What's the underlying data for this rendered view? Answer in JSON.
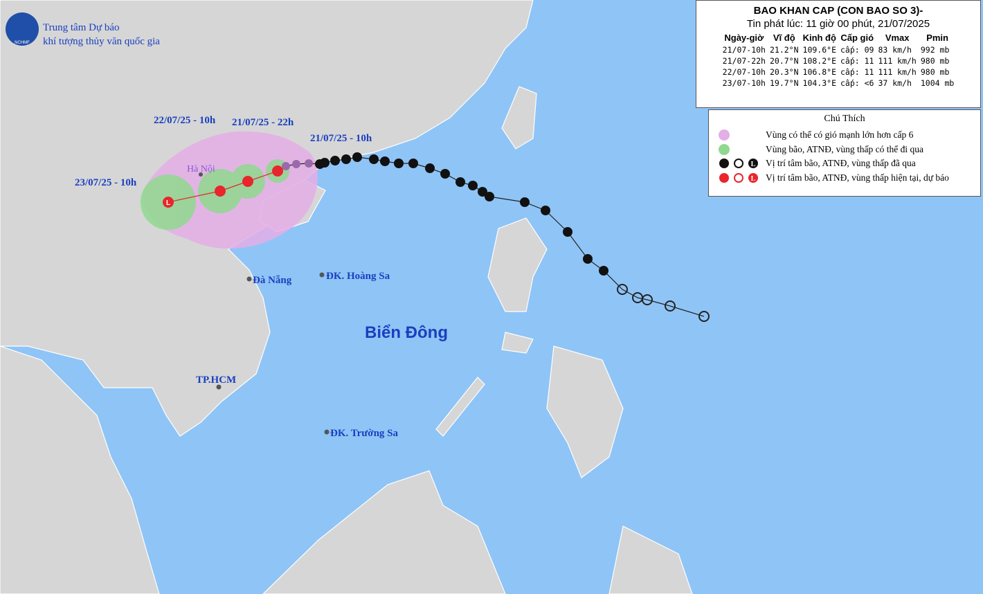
{
  "header": {
    "org_line1": "Trung tâm Dự báo",
    "org_line2": "khí tượng thủy văn quốc gia",
    "logo": "NCHMF"
  },
  "bulletin": {
    "title": "BAO KHAN CAP (CON BAO SO 3)-",
    "issued": "Tin phát lúc: 11 giờ 00 phút, 21/07/2025",
    "columns": [
      "Ngày-giờ",
      "Vĩ độ",
      "Kinh độ",
      "Cấp gió",
      "Vmax",
      "Pmin"
    ],
    "rows": [
      [
        "21/07-10h",
        "21.2°N",
        "109.6°E",
        "cấp: 09",
        "83 km/h",
        "992 mb"
      ],
      [
        "21/07-22h",
        "20.7°N",
        "108.2°E",
        "cấp: 11",
        "111 km/h",
        "980 mb"
      ],
      [
        "22/07-10h",
        "20.3°N",
        "106.8°E",
        "cấp: 11",
        "111 km/h",
        "980 mb"
      ],
      [
        "23/07-10h",
        "19.7°N",
        "104.3°E",
        "cấp: <6",
        "37 km/h",
        "1004 mb"
      ]
    ]
  },
  "legend": {
    "title": "Chú Thích",
    "low_symbol": "L",
    "items": [
      "Vùng có thể có gió mạnh lớn hơn cấp 6",
      "Vùng bão, ATNĐ, vùng thấp có thể đi qua",
      "Vị trí tâm bão, ATNĐ, vùng thấp đã qua",
      "Vị trí tâm bão, ATNĐ, vùng thấp hiện tại, dự báo"
    ]
  },
  "time_labels": [
    "22/07/25 - 10h",
    "21/07/25 - 22h",
    "21/07/25 - 10h",
    "23/07/25 - 10h"
  ],
  "places": [
    "Hà Nội",
    "Đà Nẵng",
    "ĐK. Hoàng Sa",
    "Biển Đông",
    "TP.HCM",
    "ĐK. Trường Sa"
  ]
}
